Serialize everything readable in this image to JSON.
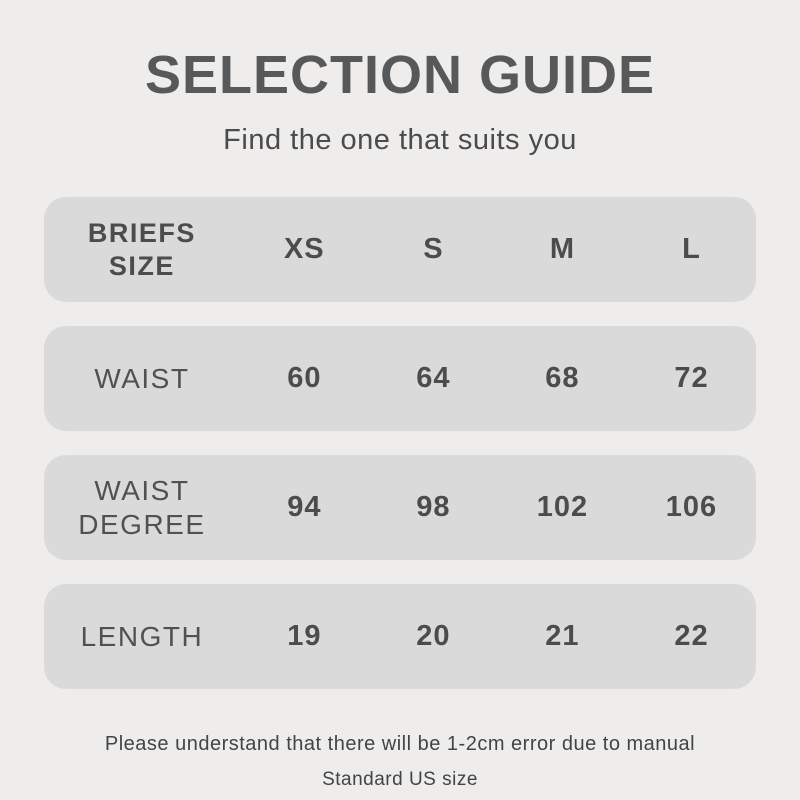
{
  "header": {
    "title": "SELECTION GUIDE",
    "subtitle": "Find the one that suits you"
  },
  "table": {
    "rows": [
      {
        "label": "BRIEFS SIZE",
        "values": [
          "XS",
          "S",
          "M",
          "L"
        ]
      },
      {
        "label": "WAIST",
        "values": [
          "60",
          "64",
          "68",
          "72"
        ]
      },
      {
        "label": "WAIST DEGREE",
        "values": [
          "94",
          "98",
          "102",
          "106"
        ]
      },
      {
        "label": "LENGTH",
        "values": [
          "19",
          "20",
          "21",
          "22"
        ]
      }
    ]
  },
  "footer": {
    "note": "Please understand that there will be 1-2cm error due to manual",
    "standard": "Standard US size"
  },
  "colors": {
    "background": "#eeedec",
    "row_background": "#dbdada",
    "title_text": "#57585a",
    "body_text": "#4b4c4e"
  },
  "chart_data": {
    "type": "table",
    "title": "SELECTION GUIDE",
    "subtitle": "Find the one that suits you",
    "columns": [
      "BRIEFS SIZE",
      "XS",
      "S",
      "M",
      "L"
    ],
    "rows": [
      [
        "WAIST",
        60,
        64,
        68,
        72
      ],
      [
        "WAIST DEGREE",
        94,
        98,
        102,
        106
      ],
      [
        "LENGTH",
        19,
        20,
        21,
        22
      ]
    ],
    "notes": [
      "Please understand that there will be 1-2cm error due to manual",
      "Standard US size"
    ]
  }
}
